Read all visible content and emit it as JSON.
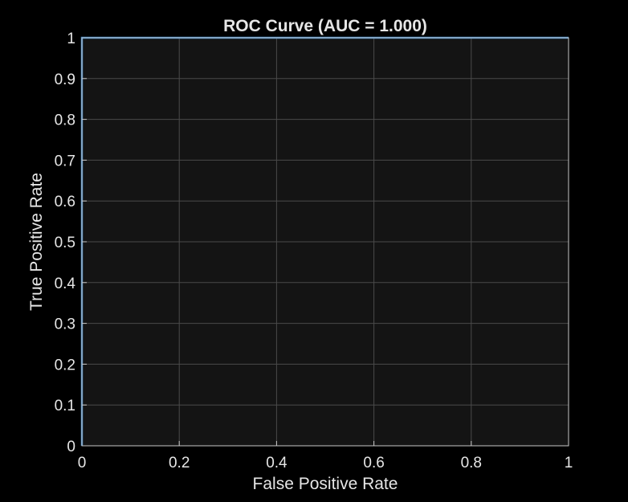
{
  "chart_data": {
    "type": "line",
    "title": "ROC Curve (AUC = 1.000)",
    "xlabel": "False Positive Rate",
    "ylabel": "True Positive Rate",
    "xlim": [
      0,
      1
    ],
    "ylim": [
      0,
      1
    ],
    "x_ticks": [
      0,
      0.2,
      0.4,
      0.6,
      0.8,
      1
    ],
    "x_tick_labels": [
      "0",
      "0.2",
      "0.4",
      "0.6",
      "0.8",
      "1"
    ],
    "y_ticks": [
      0,
      0.1,
      0.2,
      0.3,
      0.4,
      0.5,
      0.6,
      0.7,
      0.8,
      0.9,
      1
    ],
    "y_tick_labels": [
      "0",
      "0.1",
      "0.2",
      "0.3",
      "0.4",
      "0.5",
      "0.6",
      "0.7",
      "0.8",
      "0.9",
      "1"
    ],
    "grid": true,
    "series": [
      {
        "x": [
          0,
          0,
          1
        ],
        "y": [
          0,
          1,
          1
        ],
        "color": "#3d85c6"
      }
    ]
  },
  "colors": {
    "figure_background": "#000000",
    "plot_background": "#141414",
    "axis_color": "#c8c8c8",
    "grid_color": "#4a4a4a",
    "text_color": "#e6e6e6"
  }
}
